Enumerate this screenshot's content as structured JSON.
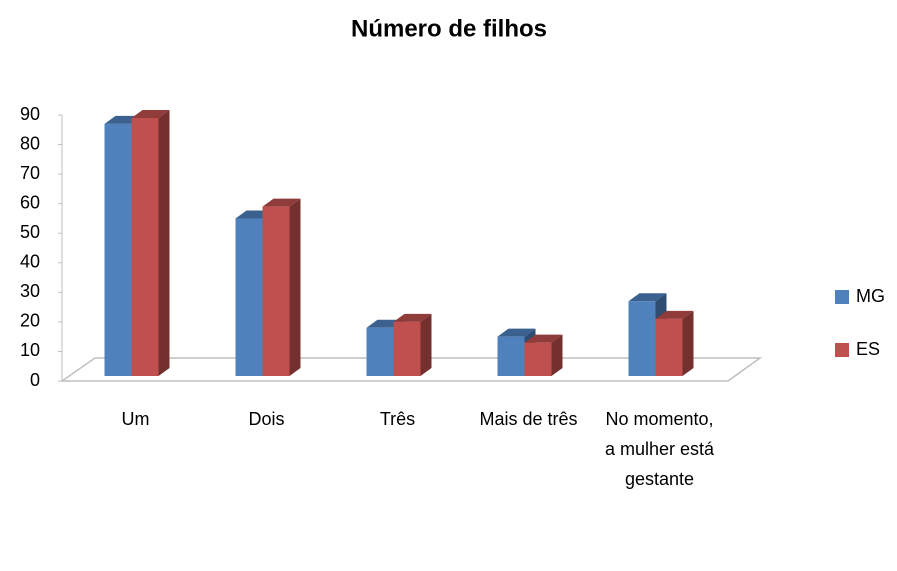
{
  "chart_data": {
    "type": "bar3d",
    "title": "Número de filhos",
    "categories": [
      "Um",
      "Dois",
      "Três",
      "Mais de três",
      "No momento, a mulher está gestante"
    ],
    "series": [
      {
        "name": "MG",
        "color": "#4f81bd",
        "values": [
          87,
          55,
          18,
          15,
          27
        ]
      },
      {
        "name": "ES",
        "color": "#c0504d",
        "values": [
          89,
          59,
          20,
          13,
          21
        ]
      }
    ],
    "ylim": [
      0,
      90
    ],
    "yticks": [
      0,
      10,
      20,
      30,
      40,
      50,
      60,
      70,
      80,
      90
    ],
    "legend": "right"
  }
}
